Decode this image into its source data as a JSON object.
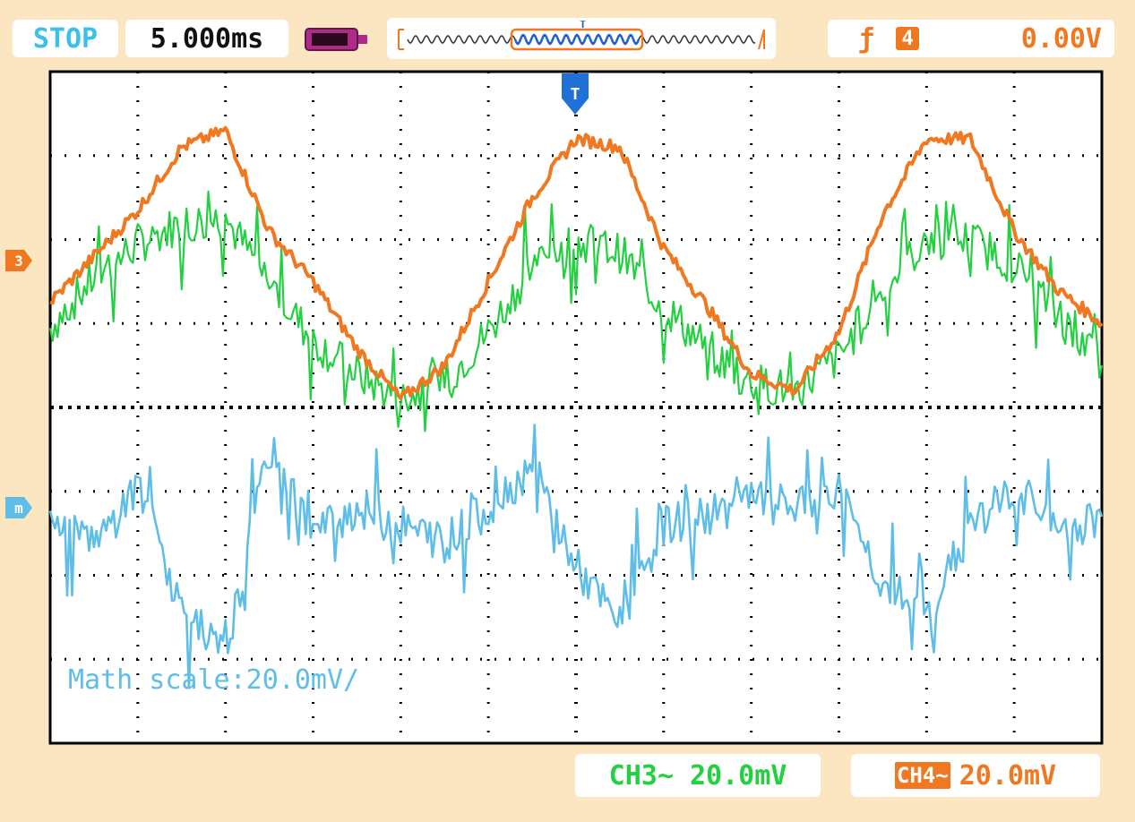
{
  "header": {
    "status": "STOP",
    "timebase": "5.000ms",
    "trigger_channel": "4",
    "trigger_level": "0.00V",
    "trigger_marker": "T"
  },
  "footer": {
    "ch3_scale": "CH3∼ 20.0mV",
    "ch4_label": "CH4∼",
    "ch4_value": "20.0mV"
  },
  "overlay": {
    "math_scale": "Math scale:20.0mV/",
    "math_marker": "m",
    "ch_marker": "3"
  },
  "icons": {
    "battery": "battery-icon",
    "trigger_edge": "rising-edge-icon",
    "memory": "memory-depth-icon"
  },
  "colors": {
    "background": "#fbe6c1",
    "ch3": "#22d040",
    "ch4": "#f07820",
    "math": "#5ebee8",
    "grid": "#000000"
  },
  "chart_data": {
    "type": "line",
    "grid": true,
    "divisions": {
      "x": 12,
      "y": 8
    },
    "x": [
      0,
      2.5,
      5,
      7.5,
      10,
      12.5,
      15,
      17.5,
      20,
      22.5,
      25,
      27.5,
      30,
      32.5,
      35,
      37.5,
      40,
      42.5,
      45,
      47.5,
      50,
      52.5,
      55,
      57.5,
      60
    ],
    "xlim": [
      0,
      60
    ],
    "ylim": [
      -80,
      80
    ],
    "series": [
      {
        "name": "CH3",
        "values": [
          19,
          31,
          39,
          44,
          45,
          30,
          16,
          8,
          2,
          6,
          18,
          34,
          40,
          37,
          24,
          14,
          6,
          4,
          12,
          28,
          40,
          40,
          34,
          22,
          10
        ]
      },
      {
        "name": "CH4",
        "values": [
          25,
          36,
          47,
          62,
          66,
          42,
          30,
          14,
          2,
          10,
          30,
          50,
          64,
          62,
          38,
          24,
          8,
          4,
          18,
          46,
          64,
          64,
          42,
          28,
          20
        ]
      },
      {
        "name": "Math",
        "values": [
          -26,
          -34,
          -18,
          -48,
          -60,
          -10,
          -30,
          -24,
          -28,
          -32,
          -24,
          -14,
          -38,
          -52,
          -28,
          -26,
          -22,
          -24,
          -20,
          -42,
          -50,
          -28,
          -20,
          -30,
          -26
        ]
      }
    ]
  }
}
